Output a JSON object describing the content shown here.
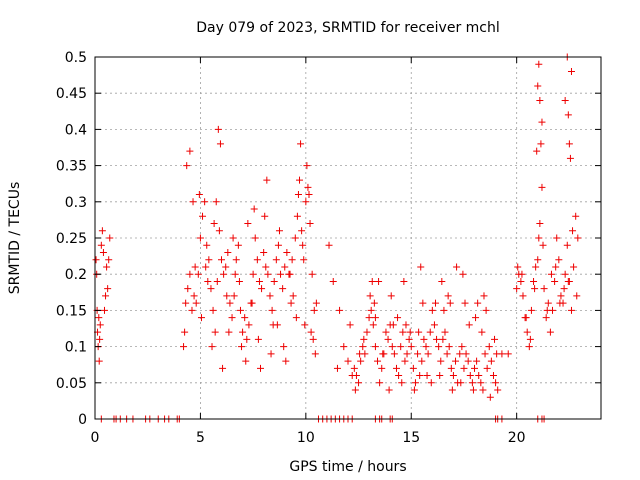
{
  "chart_data": {
    "type": "scatter",
    "title": "Day 079 of 2023, SRMTID for receiver mchl",
    "xlabel": "GPS time / hours",
    "ylabel": "SRMTID / TECUs",
    "xlim": [
      0,
      24
    ],
    "ylim": [
      0,
      0.5
    ],
    "xticks": [
      0,
      5,
      10,
      15,
      20
    ],
    "xtick_labels": [
      "0",
      "5",
      "10",
      "15",
      "20"
    ],
    "yticks": [
      0,
      0.05,
      0.1,
      0.15,
      0.2,
      0.25,
      0.3,
      0.35,
      0.4,
      0.45,
      0.5
    ],
    "ytick_labels": [
      "0",
      "0.05",
      "0.1",
      "0.15",
      "0.2",
      "0.25",
      "0.3",
      "0.35",
      "0.4",
      "0.45",
      "0.5"
    ],
    "grid": true,
    "marker": "+",
    "color": "#ee0000",
    "series": [
      {
        "name": "SRMTID",
        "x": [
          0.05,
          0.08,
          0.1,
          0.12,
          0.15,
          0.18,
          0.2,
          0.22,
          0.25,
          0.3,
          0.35,
          0.4,
          0.45,
          0.5,
          0.55,
          0.6,
          0.65,
          0.7,
          4.2,
          4.3,
          4.4,
          4.5,
          4.6,
          4.7,
          4.8,
          4.9,
          5.0,
          5.1,
          5.2,
          5.3,
          5.4,
          5.5,
          5.6,
          5.7,
          5.8,
          5.9,
          6.0,
          6.1,
          6.2,
          6.3,
          6.4,
          6.5,
          6.6,
          6.7,
          6.8,
          6.9,
          7.0,
          7.1,
          7.2,
          7.3,
          7.4,
          7.5,
          7.6,
          7.7,
          7.8,
          7.9,
          8.0,
          8.1,
          8.2,
          8.3,
          8.4,
          8.5,
          8.6,
          8.7,
          8.8,
          8.9,
          9.0,
          9.1,
          9.2,
          9.3,
          9.4,
          9.5,
          9.6,
          9.7,
          9.8,
          9.9,
          10.0,
          10.1,
          10.2,
          10.3,
          10.4,
          10.5,
          4.25,
          4.5,
          4.75,
          5.05,
          5.35,
          5.65,
          5.85,
          5.95,
          6.25,
          6.55,
          6.85,
          7.15,
          7.45,
          7.75,
          8.05,
          8.35,
          8.65,
          8.95,
          9.25,
          9.55,
          9.75,
          9.85,
          10.05,
          10.25,
          10.45,
          4.35,
          4.65,
          4.95,
          5.25,
          5.55,
          5.75,
          6.05,
          6.35,
          6.65,
          6.95,
          7.25,
          7.55,
          7.85,
          8.15,
          8.45,
          8.75,
          9.05,
          9.35,
          9.65,
          9.95,
          10.15,
          10.35,
          11.3,
          11.5,
          11.8,
          12.0,
          12.2,
          12.3,
          12.4,
          12.5,
          12.6,
          12.7,
          12.8,
          12.9,
          13.0,
          13.1,
          13.2,
          13.3,
          13.4,
          13.5,
          13.6,
          13.7,
          13.8,
          13.9,
          14.0,
          14.1,
          14.2,
          14.3,
          14.4,
          14.5,
          14.6,
          14.7,
          14.8,
          14.9,
          15.0,
          15.1,
          15.2,
          15.3,
          15.4,
          15.5,
          15.6,
          15.7,
          15.8,
          15.9,
          16.0,
          16.1,
          16.2,
          16.3,
          16.4,
          16.5,
          16.6,
          16.7,
          16.8,
          16.9,
          17.0,
          17.1,
          17.2,
          17.3,
          17.4,
          17.5,
          17.6,
          17.7,
          17.8,
          17.9,
          18.0,
          18.1,
          18.2,
          18.3,
          18.4,
          18.5,
          18.6,
          18.7,
          18.8,
          18.9,
          19.0,
          19.1,
          19.3,
          12.35,
          12.55,
          12.75,
          13.05,
          13.25,
          13.45,
          13.65,
          13.95,
          14.15,
          14.35,
          14.55,
          14.75,
          14.95,
          15.15,
          15.35,
          15.55,
          15.75,
          15.95,
          16.15,
          16.35,
          16.55,
          16.75,
          16.95,
          17.15,
          17.35,
          17.55,
          17.75,
          17.95,
          18.15,
          18.35,
          18.55,
          18.75,
          18.95,
          11.1,
          11.6,
          12.1,
          13.15,
          13.3,
          14.05,
          14.65,
          15.45,
          16.45,
          16.85,
          17.45,
          18.05,
          18.45,
          19.05,
          19.6,
          20.0,
          20.1,
          20.2,
          20.3,
          20.4,
          20.5,
          20.6,
          20.7,
          20.8,
          20.9,
          21.0,
          21.1,
          21.2,
          21.3,
          21.4,
          21.5,
          21.6,
          21.7,
          21.8,
          21.9,
          22.0,
          22.1,
          22.2,
          22.3,
          22.4,
          22.5,
          22.6,
          22.7,
          22.8,
          22.9,
          20.05,
          20.25,
          20.45,
          20.65,
          20.85,
          21.05,
          21.25,
          21.45,
          21.65,
          21.85,
          22.05,
          22.25,
          22.45,
          22.65,
          22.85,
          21.0,
          21.05,
          21.1,
          21.15,
          22.4,
          22.45,
          22.5,
          22.55,
          22.6,
          22.3,
          21.2,
          20.95,
          0.3,
          0.9,
          1.0,
          1.2,
          1.5,
          1.8,
          2.4,
          2.6,
          3.0,
          3.3,
          3.5,
          3.9,
          4.0,
          10.6,
          10.8,
          11.0,
          11.2,
          11.4,
          11.6,
          11.8,
          12.0,
          12.2,
          13.3,
          13.5,
          13.6,
          14.0,
          14.1,
          19.0,
          19.1,
          19.3,
          21.0,
          21.2,
          21.3
        ],
        "y": [
          0.22,
          0.2,
          0.15,
          0.12,
          0.1,
          0.14,
          0.08,
          0.11,
          0.13,
          0.24,
          0.26,
          0.23,
          0.15,
          0.17,
          0.21,
          0.18,
          0.22,
          0.25,
          0.1,
          0.16,
          0.18,
          0.2,
          0.15,
          0.17,
          0.16,
          0.2,
          0.25,
          0.28,
          0.3,
          0.24,
          0.22,
          0.18,
          0.15,
          0.12,
          0.19,
          0.26,
          0.22,
          0.2,
          0.21,
          0.23,
          0.16,
          0.14,
          0.17,
          0.22,
          0.24,
          0.15,
          0.12,
          0.14,
          0.11,
          0.13,
          0.16,
          0.2,
          0.25,
          0.22,
          0.19,
          0.18,
          0.23,
          0.21,
          0.2,
          0.17,
          0.15,
          0.19,
          0.22,
          0.24,
          0.2,
          0.18,
          0.21,
          0.23,
          0.2,
          0.16,
          0.17,
          0.25,
          0.28,
          0.33,
          0.26,
          0.22,
          0.3,
          0.32,
          0.27,
          0.2,
          0.15,
          0.16,
          0.12,
          0.37,
          0.21,
          0.14,
          0.19,
          0.27,
          0.4,
          0.38,
          0.17,
          0.25,
          0.19,
          0.08,
          0.16,
          0.11,
          0.28,
          0.09,
          0.13,
          0.1,
          0.2,
          0.14,
          0.38,
          0.24,
          0.35,
          0.12,
          0.09,
          0.35,
          0.3,
          0.31,
          0.21,
          0.1,
          0.3,
          0.07,
          0.12,
          0.2,
          0.1,
          0.27,
          0.29,
          0.07,
          0.33,
          0.13,
          0.26,
          0.08,
          0.22,
          0.31,
          0.13,
          0.31,
          0.11,
          0.19,
          0.07,
          0.1,
          0.08,
          0.06,
          0.07,
          0.06,
          0.05,
          0.08,
          0.1,
          0.09,
          0.12,
          0.14,
          0.15,
          0.13,
          0.1,
          0.08,
          0.05,
          0.07,
          0.09,
          0.12,
          0.11,
          0.13,
          0.1,
          0.09,
          0.07,
          0.06,
          0.1,
          0.12,
          0.08,
          0.09,
          0.11,
          0.1,
          0.07,
          0.05,
          0.09,
          0.06,
          0.08,
          0.11,
          0.1,
          0.09,
          0.12,
          0.15,
          0.13,
          0.11,
          0.1,
          0.08,
          0.11,
          0.12,
          0.09,
          0.1,
          0.07,
          0.06,
          0.08,
          0.05,
          0.09,
          0.1,
          0.07,
          0.09,
          0.08,
          0.06,
          0.05,
          0.07,
          0.08,
          0.06,
          0.05,
          0.04,
          0.09,
          0.07,
          0.1,
          0.08,
          0.06,
          0.05,
          0.04,
          0.09,
          0.04,
          0.09,
          0.11,
          0.17,
          0.16,
          0.19,
          0.09,
          0.04,
          0.13,
          0.14,
          0.05,
          0.13,
          0.12,
          0.04,
          0.12,
          0.16,
          0.06,
          0.05,
          0.16,
          0.06,
          0.15,
          0.17,
          0.04,
          0.21,
          0.05,
          0.16,
          0.13,
          0.04,
          0.16,
          0.12,
          0.15,
          0.03,
          0.11,
          0.24,
          0.15,
          0.13,
          0.19,
          0.14,
          0.17,
          0.19,
          0.21,
          0.19,
          0.16,
          0.2,
          0.14,
          0.17,
          0.09,
          0.09,
          0.18,
          0.2,
          0.19,
          0.17,
          0.14,
          0.12,
          0.1,
          0.15,
          0.19,
          0.21,
          0.22,
          0.27,
          0.32,
          0.18,
          0.14,
          0.16,
          0.12,
          0.15,
          0.19,
          0.25,
          0.22,
          0.17,
          0.16,
          0.2,
          0.24,
          0.19,
          0.15,
          0.21,
          0.28,
          0.25,
          0.21,
          0.2,
          0.14,
          0.11,
          0.18,
          0.25,
          0.24,
          0.15,
          0.2,
          0.21,
          0.16,
          0.18,
          0.19,
          0.26,
          0.17,
          0.46,
          0.49,
          0.44,
          0.38,
          0.5,
          0.42,
          0.38,
          0.36,
          0.48,
          0.44,
          0.41,
          0.37,
          0,
          0,
          0,
          0,
          0,
          0,
          0,
          0,
          0,
          0,
          0,
          0,
          0,
          0,
          0,
          0,
          0,
          0,
          0,
          0,
          0,
          0,
          0,
          0,
          0,
          0,
          0,
          0,
          0,
          0,
          0,
          0,
          0
        ]
      }
    ]
  }
}
